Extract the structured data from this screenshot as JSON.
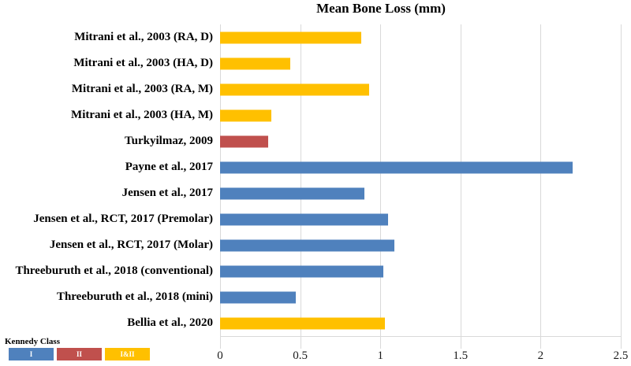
{
  "chart_data": {
    "type": "bar",
    "orientation": "horizontal",
    "title": "Mean Bone Loss (mm)",
    "xlabel": "",
    "ylabel": "",
    "xlim": [
      0,
      2.5
    ],
    "x_ticks": [
      "0",
      "0.5",
      "1",
      "1.5",
      "2",
      "2.5"
    ],
    "grid": true,
    "colors": {
      "I": "#4F81BD",
      "II": "#C0504D",
      "I&II": "#FFC000"
    },
    "legend": {
      "title": "Kennedy Class",
      "position": "bottom-left",
      "entries": [
        {
          "label": "I",
          "color": "#4F81BD"
        },
        {
          "label": "II",
          "color": "#C0504D"
        },
        {
          "label": "I&II",
          "color": "#FFC000"
        }
      ]
    },
    "bars": [
      {
        "label": "Mitrani et al., 2003 (RA, D)",
        "value": 0.88,
        "kennedy_class": "I&II"
      },
      {
        "label": "Mitrani et al., 2003 (HA, D)",
        "value": 0.44,
        "kennedy_class": "I&II"
      },
      {
        "label": "Mitrani et al., 2003 (RA, M)",
        "value": 0.93,
        "kennedy_class": "I&II"
      },
      {
        "label": "Mitrani et al., 2003 (HA, M)",
        "value": 0.32,
        "kennedy_class": "I&II"
      },
      {
        "label": "Turkyilmaz, 2009",
        "value": 0.3,
        "kennedy_class": "II"
      },
      {
        "label": "Payne et al., 2017",
        "value": 2.2,
        "kennedy_class": "I"
      },
      {
        "label": "Jensen et al., 2017",
        "value": 0.9,
        "kennedy_class": "I"
      },
      {
        "label": "Jensen et al., RCT, 2017 (Premolar)",
        "value": 1.05,
        "kennedy_class": "I"
      },
      {
        "label": "Jensen et al., RCT, 2017 (Molar)",
        "value": 1.09,
        "kennedy_class": "I"
      },
      {
        "label": "Threeburuth et al., 2018 (conventional)",
        "value": 1.02,
        "kennedy_class": "I"
      },
      {
        "label": "Threeburuth et al., 2018 (mini)",
        "value": 0.47,
        "kennedy_class": "I"
      },
      {
        "label": "Bellia et al., 2020",
        "value": 1.03,
        "kennedy_class": "I&II"
      }
    ]
  }
}
